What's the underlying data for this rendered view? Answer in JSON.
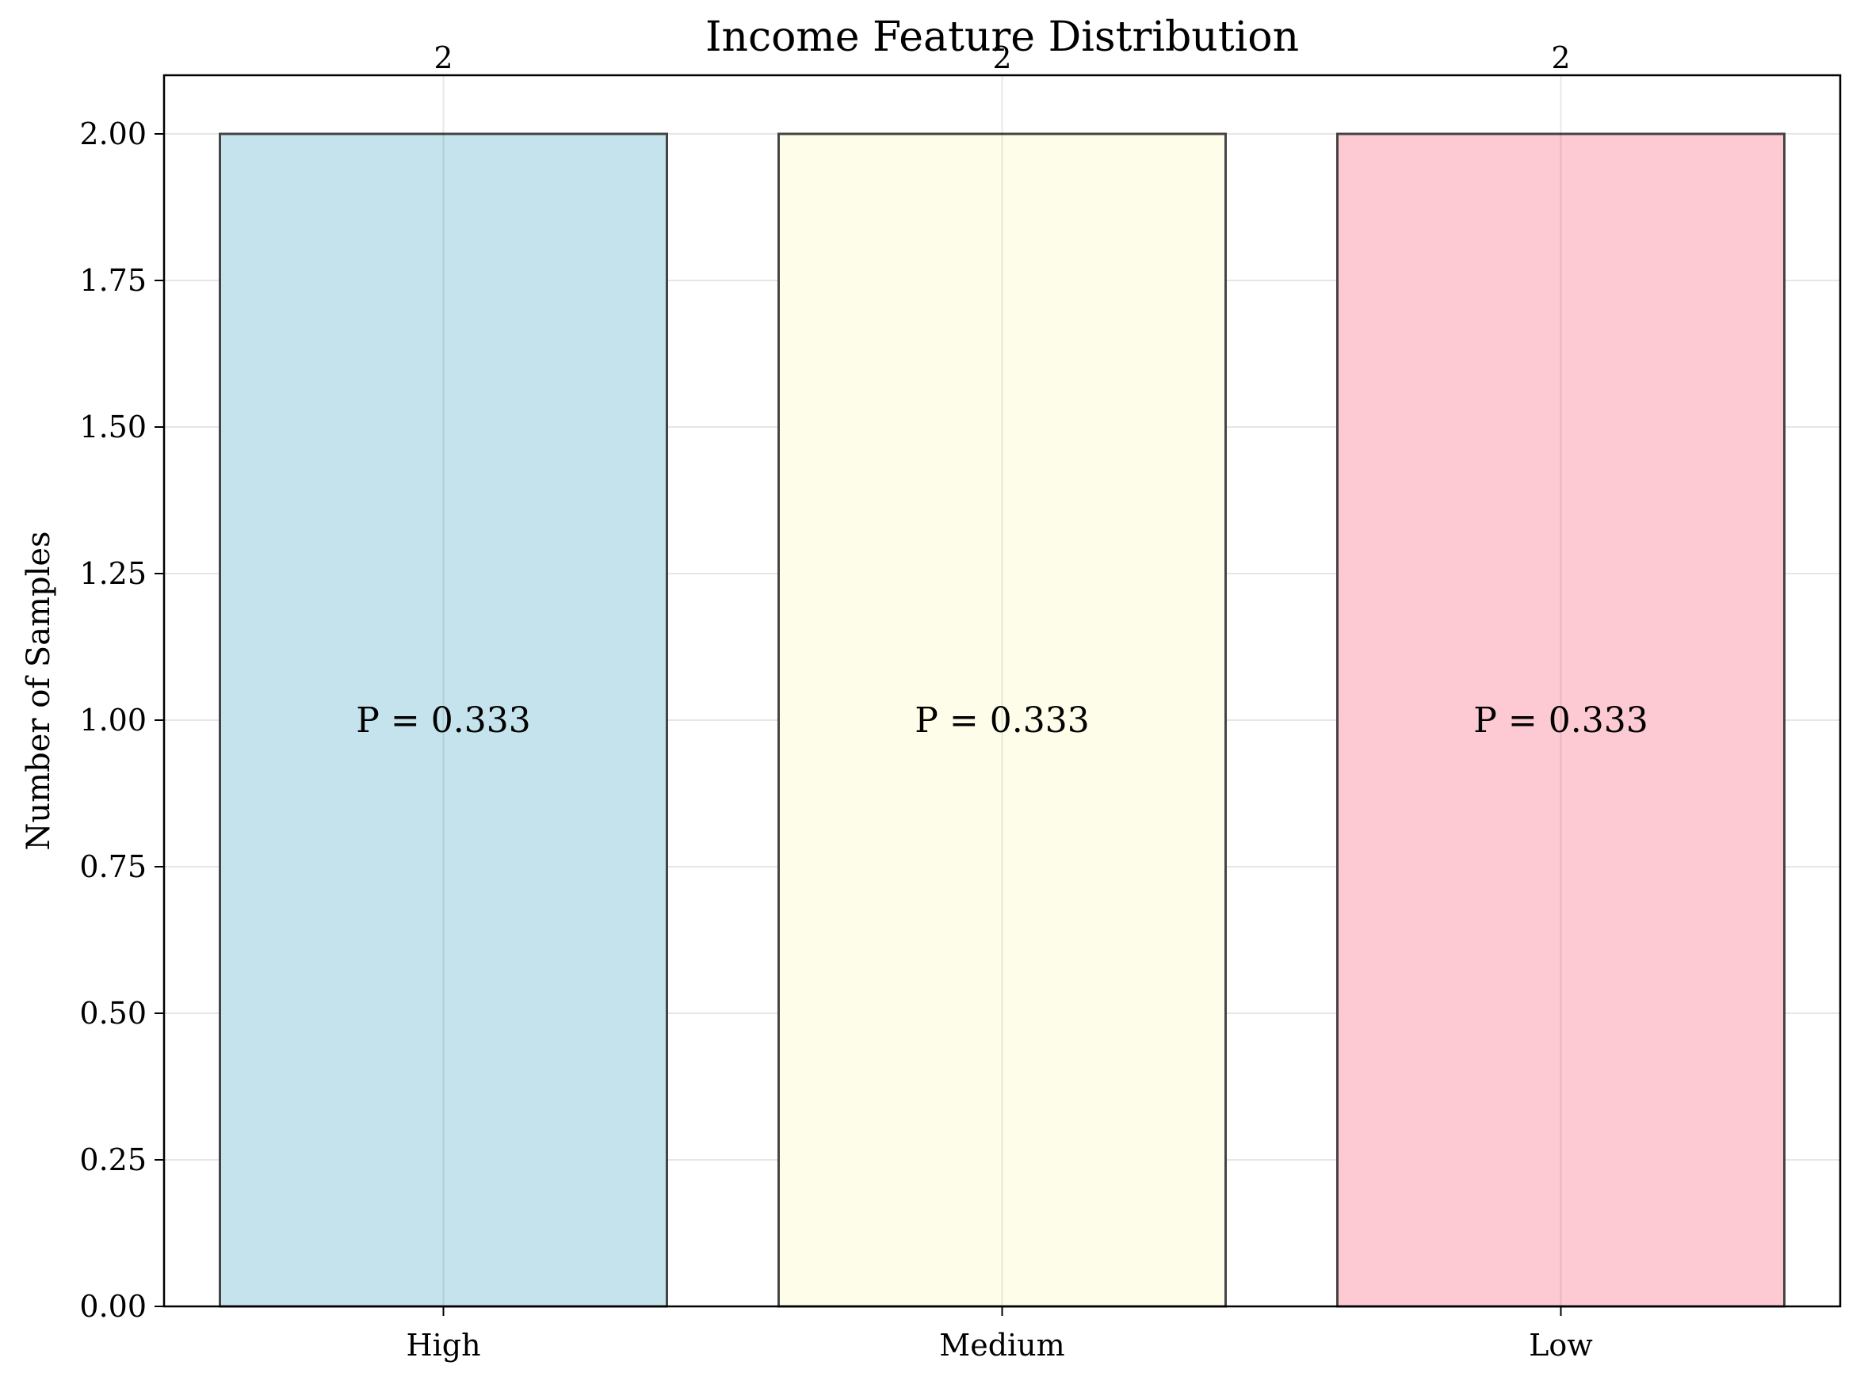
{
  "chart_data": {
    "type": "bar",
    "title": "Income Feature Distribution",
    "xlabel": "",
    "ylabel": "Number of Samples",
    "categories": [
      "High",
      "Medium",
      "Low"
    ],
    "values": [
      2,
      2,
      2
    ],
    "value_labels": [
      "2",
      "2",
      "2"
    ],
    "probability_labels": [
      "P = 0.333",
      "P = 0.333",
      "P = 0.333"
    ],
    "bar_colors": [
      "#c5e3ec",
      "#fefde9",
      "#fdc9d2"
    ],
    "ylim": [
      0,
      2.1
    ],
    "yticks": [
      0,
      0.25,
      0.5,
      0.75,
      1.0,
      1.25,
      1.5,
      1.75,
      2.0
    ],
    "ytick_labels": [
      "0.00",
      "0.25",
      "0.50",
      "0.75",
      "1.00",
      "1.25",
      "1.50",
      "1.75",
      "2.00"
    ],
    "grid": true,
    "legend": "none"
  }
}
